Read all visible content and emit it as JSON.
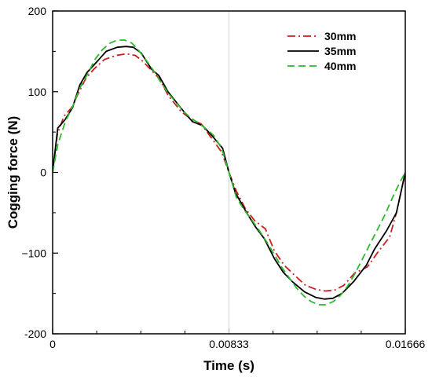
{
  "chart_data": {
    "type": "line",
    "xlabel": "Time (s)",
    "ylabel": "Cogging force (N)",
    "xlim": [
      0,
      0.01666
    ],
    "ylim": [
      -200,
      200
    ],
    "x_ticks": [
      0,
      0.00833,
      0.01666
    ],
    "x_tick_labels": [
      "0",
      "0.00833",
      "0.01666"
    ],
    "y_ticks": [
      -200,
      -100,
      0,
      100,
      200
    ],
    "y_tick_labels": [
      "-200",
      "−100",
      "0",
      "100",
      "200"
    ],
    "grid": false,
    "legend_position": "top-right",
    "series": [
      {
        "name": "30mm",
        "color": "#cc1f1f",
        "dash": "dashdot",
        "x": [
          0,
          0.00023,
          0.00054,
          0.00089,
          0.00125,
          0.00158,
          0.00195,
          0.00245,
          0.00302,
          0.0035,
          0.0039,
          0.00425,
          0.00472,
          0.00505,
          0.00547,
          0.00608,
          0.0066,
          0.00702,
          0.00744,
          0.00799,
          0.00833,
          0.00866,
          0.0091,
          0.00955,
          0.01005,
          0.01047,
          0.01094,
          0.01145,
          0.01195,
          0.01245,
          0.01288,
          0.01331,
          0.01375,
          0.01426,
          0.01487,
          0.01533,
          0.01592,
          0.01624,
          0.01666
        ],
        "y": [
          0,
          48,
          70,
          80,
          100,
          117,
          128,
          140,
          145,
          147,
          145,
          138,
          125,
          116,
          95,
          75,
          65,
          60,
          45,
          25,
          0,
          -22,
          -45,
          -60,
          -70,
          -97,
          -115,
          -128,
          -140,
          -145,
          -147,
          -146,
          -140,
          -125,
          -117,
          -100,
          -80,
          -50,
          0
        ]
      },
      {
        "name": "35mm",
        "color": "#000000",
        "dash": "solid",
        "x": [
          0,
          0.00024,
          0.00058,
          0.00094,
          0.00128,
          0.00163,
          0.00202,
          0.00253,
          0.00305,
          0.00347,
          0.00381,
          0.00418,
          0.00467,
          0.00502,
          0.00545,
          0.00605,
          0.0066,
          0.00708,
          0.00751,
          0.00803,
          0.00833,
          0.00863,
          0.00917,
          0.00957,
          0.01,
          0.01048,
          0.0109,
          0.01135,
          0.0119,
          0.01244,
          0.01283,
          0.01324,
          0.01367,
          0.01423,
          0.01482,
          0.01521,
          0.01578,
          0.01624,
          0.01666
        ],
        "y": [
          0,
          55,
          65,
          80,
          108,
          124,
          135,
          150,
          155,
          156,
          155,
          148,
          128,
          120,
          100,
          80,
          63,
          58,
          46,
          30,
          0,
          -25,
          -50,
          -67,
          -82,
          -107,
          -124,
          -136,
          -148,
          -155,
          -157,
          -156,
          -150,
          -135,
          -115,
          -95,
          -72,
          -50,
          0
        ]
      },
      {
        "name": "40mm",
        "color": "#2db82d",
        "dash": "dashed",
        "x": [
          0,
          0.00025,
          0.0006,
          0.00095,
          0.0013,
          0.00165,
          0.002,
          0.00235,
          0.0027,
          0.00305,
          0.0034,
          0.00375,
          0.0041,
          0.00445,
          0.0048,
          0.00515,
          0.0055,
          0.00585,
          0.0062,
          0.00655,
          0.0069,
          0.00725,
          0.0076,
          0.00798,
          0.00833,
          0.00868,
          0.00906,
          0.00941,
          0.00976,
          0.01011,
          0.01046,
          0.01081,
          0.01116,
          0.01151,
          0.01186,
          0.01221,
          0.01256,
          0.01291,
          0.01326,
          0.01361,
          0.01396,
          0.01431,
          0.01466,
          0.01501,
          0.01536,
          0.01571,
          0.01606,
          0.01641,
          0.01666
        ],
        "y": [
          0,
          35,
          63,
          82,
          105,
          122,
          140,
          152,
          160,
          164,
          164,
          160,
          150,
          138,
          125,
          110,
          97,
          86,
          75,
          67,
          61,
          54,
          46,
          30,
          0,
          -31,
          -47,
          -59,
          -72,
          -86,
          -101,
          -117,
          -130,
          -143,
          -153,
          -160,
          -164,
          -164,
          -160,
          -152,
          -140,
          -124,
          -106,
          -88,
          -70,
          -52,
          -31,
          -12,
          0
        ]
      }
    ]
  }
}
